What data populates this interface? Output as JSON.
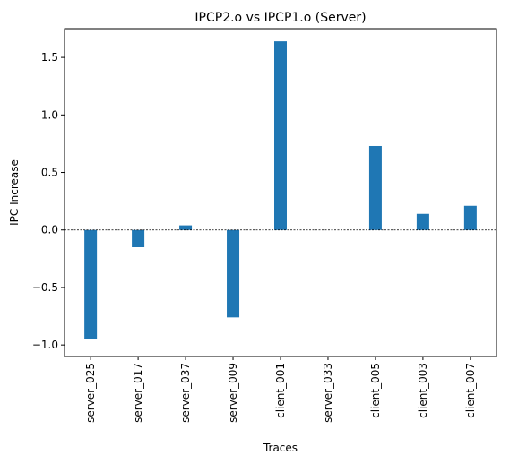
{
  "chart_data": {
    "type": "bar",
    "title": "IPCP2.o vs IPCP1.o (Server)",
    "xlabel": "Traces",
    "ylabel": "IPC Increase",
    "categories": [
      "server_025",
      "server_017",
      "server_037",
      "server_009",
      "client_001",
      "server_033",
      "client_005",
      "client_003",
      "client_007"
    ],
    "values": [
      -0.95,
      -0.15,
      0.04,
      -0.76,
      1.64,
      0.0,
      0.73,
      0.14,
      0.21
    ],
    "ylim": [
      -1.1,
      1.75
    ],
    "yticks": [
      -1.0,
      -0.5,
      0.0,
      0.5,
      1.0,
      1.5
    ],
    "ytick_labels": [
      "−1.0",
      "−0.5",
      "0.0",
      "0.5",
      "1.0",
      "1.5"
    ],
    "bar_color": "#1f77b4",
    "reference_line": {
      "y": 0,
      "style": "dashed",
      "color": "#000000"
    },
    "grid": false,
    "legend": "none"
  }
}
